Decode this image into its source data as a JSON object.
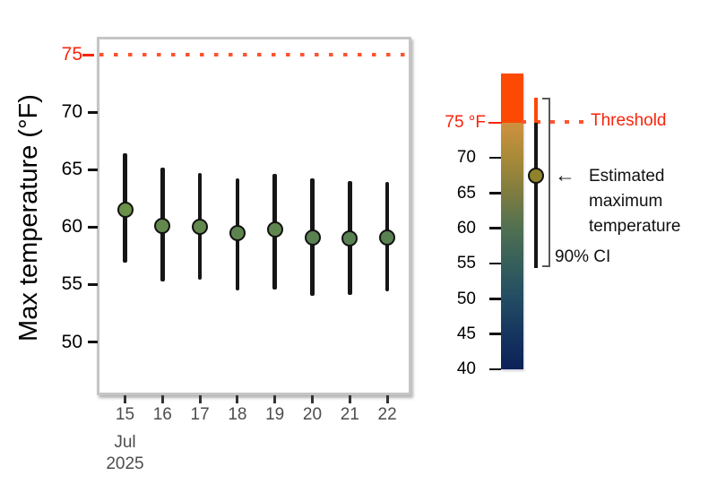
{
  "chart_data": {
    "type": "pointrange",
    "title": "",
    "ylabel": "Max temperature (°F)",
    "yticks": [
      75,
      70,
      65,
      60,
      55,
      50
    ],
    "ylim": [
      45.5,
      76.5
    ],
    "grid": false,
    "x_tick_labels": [
      "15",
      "16",
      "17",
      "18",
      "19",
      "20",
      "21",
      "22"
    ],
    "x_month_label": "Jul",
    "x_year_label": "2025",
    "threshold": {
      "value": 75,
      "tick_label": "75",
      "color": "#F8250C"
    },
    "ci_level": "90%",
    "series": [
      {
        "date": "Jul 15 2025",
        "x": "15",
        "estimate": 61.5,
        "ci_low": 56.9,
        "ci_high": 66.4,
        "point_color": "#6B9048"
      },
      {
        "date": "Jul 16 2025",
        "x": "16",
        "estimate": 60.1,
        "ci_low": 55.3,
        "ci_high": 65.2,
        "point_color": "#62884C"
      },
      {
        "date": "Jul 17 2025",
        "x": "17",
        "estimate": 60.0,
        "ci_low": 55.4,
        "ci_high": 64.7,
        "point_color": "#61884D"
      },
      {
        "date": "Jul 18 2025",
        "x": "18",
        "estimate": 59.5,
        "ci_low": 54.5,
        "ci_high": 64.2,
        "point_color": "#5D844F"
      },
      {
        "date": "Jul 19 2025",
        "x": "19",
        "estimate": 59.8,
        "ci_low": 54.6,
        "ci_high": 64.6,
        "point_color": "#5F864E"
      },
      {
        "date": "Jul 20 2025",
        "x": "20",
        "estimate": 59.1,
        "ci_low": 54.0,
        "ci_high": 64.2,
        "point_color": "#598151"
      },
      {
        "date": "Jul 21 2025",
        "x": "21",
        "estimate": 59.0,
        "ci_low": 54.1,
        "ci_high": 64.0,
        "point_color": "#588051"
      },
      {
        "date": "Jul 22 2025",
        "x": "22",
        "estimate": 59.1,
        "ci_low": 54.4,
        "ci_high": 63.9,
        "point_color": "#598151"
      }
    ]
  },
  "legend": {
    "ticks": [
      {
        "label": "75 °F",
        "value": 75,
        "highlight": true
      },
      {
        "label": "70",
        "value": 70
      },
      {
        "label": "65",
        "value": 65
      },
      {
        "label": "60",
        "value": 60
      },
      {
        "label": "55",
        "value": 55
      },
      {
        "label": "50",
        "value": 50
      },
      {
        "label": "45",
        "value": 45
      },
      {
        "label": "40",
        "value": 40
      }
    ],
    "colorbar": {
      "cap_color": "#FC4903",
      "gradient_stops": [
        {
          "value": 75,
          "color": "#CE9140"
        },
        {
          "value": 70,
          "color": "#A88A38"
        },
        {
          "value": 65,
          "color": "#7E7C40"
        },
        {
          "value": 60,
          "color": "#507051"
        },
        {
          "value": 55,
          "color": "#355F5B"
        },
        {
          "value": 50,
          "color": "#224C63"
        },
        {
          "value": 45,
          "color": "#15355F"
        },
        {
          "value": 40,
          "color": "#0C2158"
        }
      ]
    },
    "threshold_label": "Threshold",
    "arrow_glyph": "←",
    "estimate_label_lines": [
      "Estimated",
      "maximum",
      "temperature"
    ],
    "ci_label": "90% CI",
    "example": {
      "estimate": 67.5,
      "ci_low": 54.4,
      "ci_high": 78.6,
      "point_color": "#8F832B"
    }
  },
  "colors": {
    "threshold_red": "#F8250C",
    "threshold_dots": "#FF5430",
    "error_bar": "#161616",
    "x_axis_text": "#4D4D4D",
    "panel_border": "#C5C5C5",
    "bracket_gray": "#595959"
  }
}
